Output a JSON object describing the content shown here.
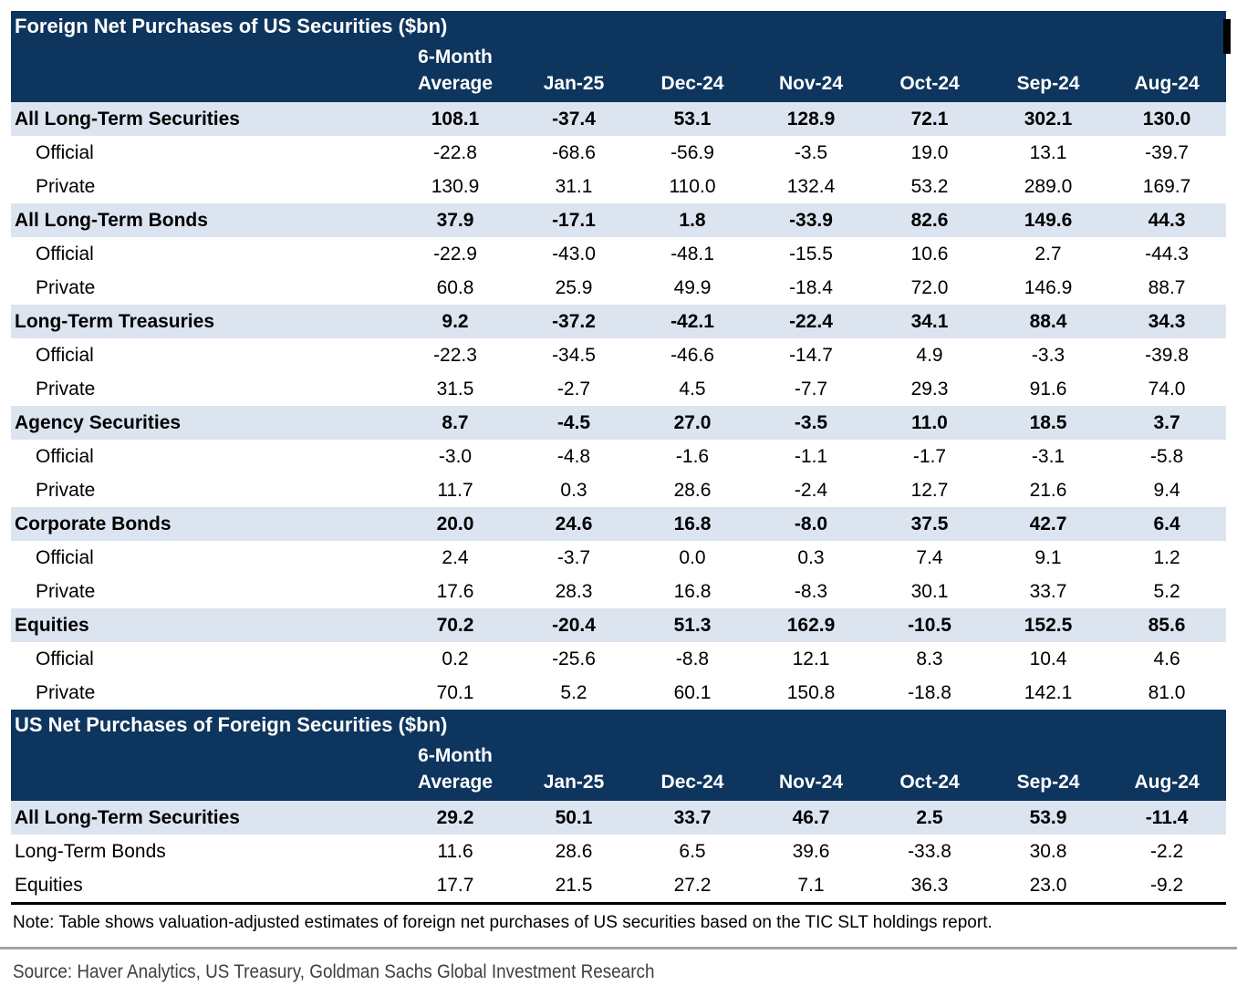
{
  "colors": {
    "header_navy": "#0d355e",
    "section_band_blue": "#dce4f0",
    "row_white": "#ffffff",
    "bottom_rule_black": "#000000",
    "divider_gray": "#a3a3a3",
    "header_text": "#ffffff",
    "body_text": "#000000"
  },
  "scrollbar_fragment": {
    "color": "#000000"
  },
  "chart_data": [
    {
      "type": "table",
      "title": "Foreign Net Purchases of US Securities ($bn)",
      "column_header_top": "6-Month",
      "columns": [
        "Average",
        "Jan-25",
        "Dec-24",
        "Nov-24",
        "Oct-24",
        "Sep-24",
        "Aug-24"
      ],
      "rows": [
        {
          "label": "All Long-Term Securities",
          "style": "section",
          "values": [
            "108.1",
            "-37.4",
            "53.1",
            "128.9",
            "72.1",
            "302.1",
            "130.0"
          ]
        },
        {
          "label": "Official",
          "style": "sub",
          "values": [
            "-22.8",
            "-68.6",
            "-56.9",
            "-3.5",
            "19.0",
            "13.1",
            "-39.7"
          ]
        },
        {
          "label": "Private",
          "style": "sub",
          "values": [
            "130.9",
            "31.1",
            "110.0",
            "132.4",
            "53.2",
            "289.0",
            "169.7"
          ]
        },
        {
          "label": "All Long-Term Bonds",
          "style": "section",
          "values": [
            "37.9",
            "-17.1",
            "1.8",
            "-33.9",
            "82.6",
            "149.6",
            "44.3"
          ]
        },
        {
          "label": "Official",
          "style": "sub",
          "values": [
            "-22.9",
            "-43.0",
            "-48.1",
            "-15.5",
            "10.6",
            "2.7",
            "-44.3"
          ]
        },
        {
          "label": "Private",
          "style": "sub",
          "values": [
            "60.8",
            "25.9",
            "49.9",
            "-18.4",
            "72.0",
            "146.9",
            "88.7"
          ]
        },
        {
          "label": "Long-Term Treasuries",
          "style": "section",
          "values": [
            "9.2",
            "-37.2",
            "-42.1",
            "-22.4",
            "34.1",
            "88.4",
            "34.3"
          ]
        },
        {
          "label": "Official",
          "style": "sub",
          "values": [
            "-22.3",
            "-34.5",
            "-46.6",
            "-14.7",
            "4.9",
            "-3.3",
            "-39.8"
          ]
        },
        {
          "label": "Private",
          "style": "sub",
          "values": [
            "31.5",
            "-2.7",
            "4.5",
            "-7.7",
            "29.3",
            "91.6",
            "74.0"
          ]
        },
        {
          "label": "Agency Securities",
          "style": "section",
          "values": [
            "8.7",
            "-4.5",
            "27.0",
            "-3.5",
            "11.0",
            "18.5",
            "3.7"
          ]
        },
        {
          "label": "Official",
          "style": "sub",
          "values": [
            "-3.0",
            "-4.8",
            "-1.6",
            "-1.1",
            "-1.7",
            "-3.1",
            "-5.8"
          ]
        },
        {
          "label": "Private",
          "style": "sub",
          "values": [
            "11.7",
            "0.3",
            "28.6",
            "-2.4",
            "12.7",
            "21.6",
            "9.4"
          ]
        },
        {
          "label": "Corporate Bonds",
          "style": "section",
          "values": [
            "20.0",
            "24.6",
            "16.8",
            "-8.0",
            "37.5",
            "42.7",
            "6.4"
          ]
        },
        {
          "label": "Official",
          "style": "sub",
          "values": [
            "2.4",
            "-3.7",
            "0.0",
            "0.3",
            "7.4",
            "9.1",
            "1.2"
          ]
        },
        {
          "label": "Private",
          "style": "sub",
          "values": [
            "17.6",
            "28.3",
            "16.8",
            "-8.3",
            "30.1",
            "33.7",
            "5.2"
          ]
        },
        {
          "label": "Equities",
          "style": "section",
          "values": [
            "70.2",
            "-20.4",
            "51.3",
            "162.9",
            "-10.5",
            "152.5",
            "85.6"
          ]
        },
        {
          "label": "Official",
          "style": "sub",
          "values": [
            "0.2",
            "-25.6",
            "-8.8",
            "12.1",
            "8.3",
            "10.4",
            "4.6"
          ]
        },
        {
          "label": "Private",
          "style": "sub",
          "values": [
            "70.1",
            "5.2",
            "60.1",
            "150.8",
            "-18.8",
            "142.1",
            "81.0"
          ]
        }
      ]
    },
    {
      "type": "table",
      "title": "US Net Purchases of Foreign Securities ($bn)",
      "column_header_top": "6-Month",
      "columns": [
        "Average",
        "Jan-25",
        "Dec-24",
        "Nov-24",
        "Oct-24",
        "Sep-24",
        "Aug-24"
      ],
      "rows": [
        {
          "label": "All Long-Term Securities",
          "style": "section",
          "values": [
            "29.2",
            "50.1",
            "33.7",
            "46.7",
            "2.5",
            "53.9",
            "-11.4"
          ]
        },
        {
          "label": "Long-Term Bonds",
          "style": "plain",
          "values": [
            "11.6",
            "28.6",
            "6.5",
            "39.6",
            "-33.8",
            "30.8",
            "-2.2"
          ]
        },
        {
          "label": "Equities",
          "style": "plain",
          "values": [
            "17.7",
            "21.5",
            "27.2",
            "7.1",
            "36.3",
            "23.0",
            "-9.2"
          ]
        }
      ]
    }
  ],
  "note": "Note: Table shows valuation-adjusted estimates of foreign net purchases of US securities based on the TIC SLT holdings report.",
  "source": "Source: Haver Analytics, US Treasury, Goldman Sachs Global Investment Research"
}
